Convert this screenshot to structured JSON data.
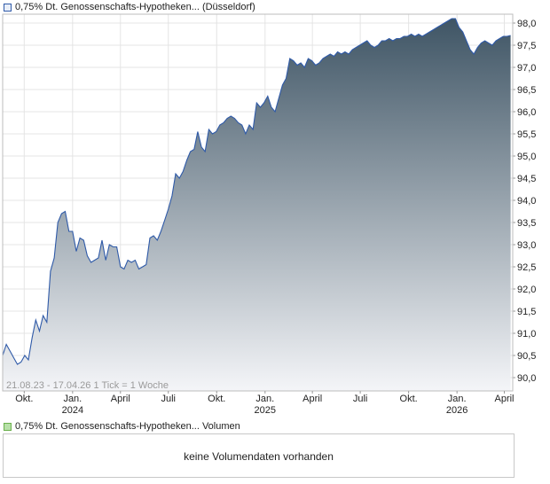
{
  "legend_price": {
    "label": "0,75% Dt. Genossenschafts-Hypotheken... (Düsseldorf)",
    "color": "#2f5aa8"
  },
  "legend_volume": {
    "label": "0,75% Dt. Genossenschafts-Hypotheken... Volumen",
    "color": "#6ab04c"
  },
  "volume_message": "keine Volumendaten vorhanden",
  "footer_note": "21.08.23 - 17.04.26   1 Tick = 1 Woche",
  "chart_data": {
    "type": "area",
    "title": "",
    "xlabel": "",
    "ylabel": "",
    "ylim": [
      89.7,
      98.2
    ],
    "y_ticks": [
      "90,0",
      "90,5",
      "91,0",
      "91,5",
      "92,0",
      "92,5",
      "93,0",
      "93,5",
      "94,0",
      "94,5",
      "95,0",
      "95,5",
      "96,0",
      "96,5",
      "97,0",
      "97,5",
      "98,0"
    ],
    "x_ticks": [
      {
        "date": "2023-10-01",
        "label": "Okt.",
        "sublabel": ""
      },
      {
        "date": "2024-01-01",
        "label": "Jan.",
        "sublabel": "2024"
      },
      {
        "date": "2024-04-01",
        "label": "April",
        "sublabel": ""
      },
      {
        "date": "2024-07-01",
        "label": "Juli",
        "sublabel": ""
      },
      {
        "date": "2024-10-01",
        "label": "Okt.",
        "sublabel": ""
      },
      {
        "date": "2025-01-01",
        "label": "Jan.",
        "sublabel": "2025"
      },
      {
        "date": "2025-04-01",
        "label": "April",
        "sublabel": ""
      },
      {
        "date": "2025-07-01",
        "label": "Juli",
        "sublabel": ""
      },
      {
        "date": "2025-10-01",
        "label": "Okt.",
        "sublabel": ""
      },
      {
        "date": "2026-01-01",
        "label": "Jan.",
        "sublabel": "2026"
      },
      {
        "date": "2026-04-01",
        "label": "April",
        "sublabel": ""
      }
    ],
    "x_range": [
      "2023-08-21",
      "2026-04-17"
    ],
    "grid": true,
    "line_color": "#2f5aa8",
    "fill_top_color": "#3f5565",
    "fill_bottom_color": "#f4f5f8",
    "series": [
      {
        "name": "",
        "points": [
          [
            "2023-08-21",
            90.5
          ],
          [
            "2023-08-28",
            90.75
          ],
          [
            "2023-09-04",
            90.6
          ],
          [
            "2023-09-11",
            90.45
          ],
          [
            "2023-09-18",
            90.3
          ],
          [
            "2023-09-25",
            90.35
          ],
          [
            "2023-10-02",
            90.5
          ],
          [
            "2023-10-09",
            90.4
          ],
          [
            "2023-10-16",
            90.9
          ],
          [
            "2023-10-23",
            91.3
          ],
          [
            "2023-10-30",
            91.05
          ],
          [
            "2023-11-06",
            91.4
          ],
          [
            "2023-11-13",
            91.25
          ],
          [
            "2023-11-20",
            92.4
          ],
          [
            "2023-11-27",
            92.7
          ],
          [
            "2023-12-04",
            93.5
          ],
          [
            "2023-12-11",
            93.7
          ],
          [
            "2023-12-18",
            93.75
          ],
          [
            "2023-12-25",
            93.3
          ],
          [
            "2024-01-01",
            93.3
          ],
          [
            "2024-01-08",
            92.85
          ],
          [
            "2024-01-15",
            93.15
          ],
          [
            "2024-01-22",
            93.1
          ],
          [
            "2024-01-29",
            92.75
          ],
          [
            "2024-02-05",
            92.6
          ],
          [
            "2024-02-12",
            92.65
          ],
          [
            "2024-02-19",
            92.7
          ],
          [
            "2024-02-26",
            93.1
          ],
          [
            "2024-03-04",
            92.65
          ],
          [
            "2024-03-11",
            93.0
          ],
          [
            "2024-03-18",
            92.95
          ],
          [
            "2024-03-25",
            92.95
          ],
          [
            "2024-04-01",
            92.5
          ],
          [
            "2024-04-08",
            92.45
          ],
          [
            "2024-04-15",
            92.65
          ],
          [
            "2024-04-22",
            92.6
          ],
          [
            "2024-04-29",
            92.65
          ],
          [
            "2024-05-06",
            92.45
          ],
          [
            "2024-05-13",
            92.5
          ],
          [
            "2024-05-20",
            92.55
          ],
          [
            "2024-05-27",
            93.15
          ],
          [
            "2024-06-03",
            93.2
          ],
          [
            "2024-06-10",
            93.1
          ],
          [
            "2024-06-17",
            93.3
          ],
          [
            "2024-06-24",
            93.55
          ],
          [
            "2024-07-01",
            93.8
          ],
          [
            "2024-07-08",
            94.1
          ],
          [
            "2024-07-15",
            94.6
          ],
          [
            "2024-07-22",
            94.5
          ],
          [
            "2024-07-29",
            94.65
          ],
          [
            "2024-08-05",
            94.9
          ],
          [
            "2024-08-12",
            95.1
          ],
          [
            "2024-08-19",
            95.15
          ],
          [
            "2024-08-26",
            95.55
          ],
          [
            "2024-09-02",
            95.2
          ],
          [
            "2024-09-09",
            95.1
          ],
          [
            "2024-09-16",
            95.6
          ],
          [
            "2024-09-23",
            95.5
          ],
          [
            "2024-09-30",
            95.55
          ],
          [
            "2024-10-07",
            95.7
          ],
          [
            "2024-10-14",
            95.75
          ],
          [
            "2024-10-21",
            95.85
          ],
          [
            "2024-10-28",
            95.9
          ],
          [
            "2024-11-04",
            95.85
          ],
          [
            "2024-11-11",
            95.75
          ],
          [
            "2024-11-18",
            95.7
          ],
          [
            "2024-11-25",
            95.5
          ],
          [
            "2024-12-02",
            95.7
          ],
          [
            "2024-12-09",
            95.6
          ],
          [
            "2024-12-16",
            96.2
          ],
          [
            "2024-12-23",
            96.1
          ],
          [
            "2024-12-30",
            96.2
          ],
          [
            "2025-01-06",
            96.35
          ],
          [
            "2025-01-13",
            96.1
          ],
          [
            "2025-01-20",
            96.0
          ],
          [
            "2025-01-27",
            96.3
          ],
          [
            "2025-02-03",
            96.6
          ],
          [
            "2025-02-10",
            96.75
          ],
          [
            "2025-02-17",
            97.2
          ],
          [
            "2025-02-24",
            97.15
          ],
          [
            "2025-03-03",
            97.05
          ],
          [
            "2025-03-10",
            97.1
          ],
          [
            "2025-03-17",
            97.0
          ],
          [
            "2025-03-24",
            97.2
          ],
          [
            "2025-03-31",
            97.15
          ],
          [
            "2025-04-07",
            97.05
          ],
          [
            "2025-04-14",
            97.1
          ],
          [
            "2025-04-21",
            97.2
          ],
          [
            "2025-04-28",
            97.25
          ],
          [
            "2025-05-05",
            97.3
          ],
          [
            "2025-05-12",
            97.25
          ],
          [
            "2025-05-19",
            97.35
          ],
          [
            "2025-05-26",
            97.3
          ],
          [
            "2025-06-02",
            97.35
          ],
          [
            "2025-06-09",
            97.3
          ],
          [
            "2025-06-16",
            97.4
          ],
          [
            "2025-06-23",
            97.45
          ],
          [
            "2025-06-30",
            97.5
          ],
          [
            "2025-07-07",
            97.55
          ],
          [
            "2025-07-14",
            97.6
          ],
          [
            "2025-07-21",
            97.5
          ],
          [
            "2025-07-28",
            97.45
          ],
          [
            "2025-08-04",
            97.5
          ],
          [
            "2025-08-11",
            97.6
          ],
          [
            "2025-08-18",
            97.6
          ],
          [
            "2025-08-25",
            97.65
          ],
          [
            "2025-09-01",
            97.6
          ],
          [
            "2025-09-08",
            97.65
          ],
          [
            "2025-09-15",
            97.65
          ],
          [
            "2025-09-22",
            97.7
          ],
          [
            "2025-09-29",
            97.7
          ],
          [
            "2025-10-06",
            97.75
          ],
          [
            "2025-10-13",
            97.7
          ],
          [
            "2025-10-20",
            97.75
          ],
          [
            "2025-10-27",
            97.7
          ],
          [
            "2025-11-03",
            97.75
          ],
          [
            "2025-11-10",
            97.8
          ],
          [
            "2025-11-17",
            97.85
          ],
          [
            "2025-11-24",
            97.9
          ],
          [
            "2025-12-01",
            97.95
          ],
          [
            "2025-12-08",
            98.0
          ],
          [
            "2025-12-15",
            98.05
          ],
          [
            "2025-12-22",
            98.1
          ],
          [
            "2025-12-29",
            98.1
          ],
          [
            "2026-01-05",
            97.9
          ],
          [
            "2026-01-12",
            97.8
          ],
          [
            "2026-01-19",
            97.6
          ],
          [
            "2026-01-26",
            97.4
          ],
          [
            "2026-02-02",
            97.3
          ],
          [
            "2026-02-09",
            97.45
          ],
          [
            "2026-02-16",
            97.55
          ],
          [
            "2026-02-23",
            97.6
          ],
          [
            "2026-03-02",
            97.55
          ],
          [
            "2026-03-09",
            97.5
          ],
          [
            "2026-03-16",
            97.6
          ],
          [
            "2026-03-23",
            97.65
          ],
          [
            "2026-03-30",
            97.7
          ],
          [
            "2026-04-06",
            97.7
          ],
          [
            "2026-04-13",
            97.72
          ]
        ]
      }
    ]
  }
}
